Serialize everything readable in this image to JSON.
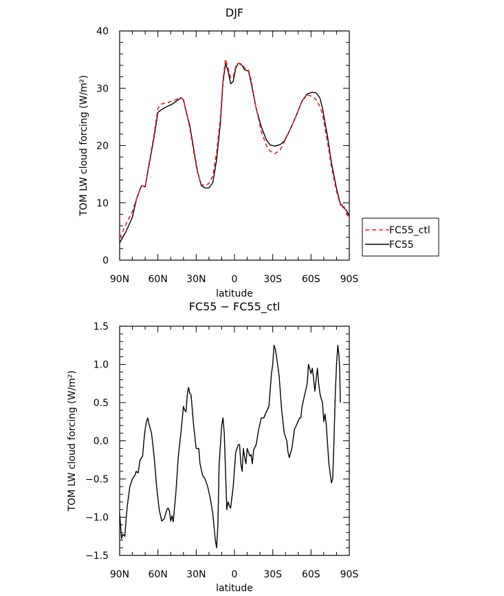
{
  "chart_data": [
    {
      "type": "line",
      "title": "DJF",
      "xlabel": "latitude",
      "ylabel": "TOM LW cloud forcing (W/m²)",
      "xlim": [
        90,
        -90
      ],
      "ylim": [
        0,
        40
      ],
      "x_ticks": [
        90,
        60,
        30,
        0,
        -30,
        -60,
        -90
      ],
      "x_tick_labels": [
        "90N",
        "60N",
        "30N",
        "0",
        "30S",
        "60S",
        "90S"
      ],
      "y_ticks": [
        0,
        10,
        20,
        30,
        40
      ],
      "y_tick_labels": [
        "0",
        "10",
        "20",
        "30",
        "40"
      ],
      "legend": {
        "placement": "right",
        "entries": [
          "FC55_ctl",
          "FC55"
        ]
      },
      "series": [
        {
          "name": "FC55",
          "color": "#000000",
          "dash": "solid",
          "points": [
            [
              90,
              3.0
            ],
            [
              85,
              5.0
            ],
            [
              80,
              7.5
            ],
            [
              77,
              10.5
            ],
            [
              73,
              13.0
            ],
            [
              70,
              12.8
            ],
            [
              67,
              16.5
            ],
            [
              63,
              21.5
            ],
            [
              60,
              25.8
            ],
            [
              57,
              26.3
            ],
            [
              53,
              26.8
            ],
            [
              49,
              27.2
            ],
            [
              46,
              27.7
            ],
            [
              42,
              28.3
            ],
            [
              40,
              28.0
            ],
            [
              38,
              26.0
            ],
            [
              35,
              23.5
            ],
            [
              32,
              19.5
            ],
            [
              29,
              15.5
            ],
            [
              26,
              13.0
            ],
            [
              23,
              12.6
            ],
            [
              20,
              12.6
            ],
            [
              17,
              13.5
            ],
            [
              14,
              17.5
            ],
            [
              11,
              24.0
            ],
            [
              9,
              31.0
            ],
            [
              7,
              34.3
            ],
            [
              5,
              33.0
            ],
            [
              3,
              30.8
            ],
            [
              1,
              31.2
            ],
            [
              -1,
              33.5
            ],
            [
              -3,
              34.4
            ],
            [
              -6,
              34.0
            ],
            [
              -8,
              33.2
            ],
            [
              -11,
              33.0
            ],
            [
              -13,
              31.0
            ],
            [
              -17,
              26.5
            ],
            [
              -21,
              23.3
            ],
            [
              -25,
              21.0
            ],
            [
              -28,
              20.1
            ],
            [
              -32,
              19.9
            ],
            [
              -36,
              20.2
            ],
            [
              -39,
              20.8
            ],
            [
              -43,
              22.5
            ],
            [
              -48,
              25.0
            ],
            [
              -53,
              27.8
            ],
            [
              -57,
              29.0
            ],
            [
              -61,
              29.3
            ],
            [
              -64,
              29.2
            ],
            [
              -67,
              28.3
            ],
            [
              -69,
              26.5
            ],
            [
              -73,
              21.5
            ],
            [
              -76,
              17.0
            ],
            [
              -80,
              12.5
            ],
            [
              -83,
              9.8
            ],
            [
              -85,
              9.3
            ],
            [
              -88,
              8.6
            ],
            [
              -90,
              7.7
            ]
          ]
        },
        {
          "name": "FC55_ctl",
          "color": "#e8202a",
          "dash": "dashed",
          "points": [
            [
              90,
              3.8
            ],
            [
              85,
              6.3
            ],
            [
              80,
              8.5
            ],
            [
              77,
              10.6
            ],
            [
              73,
              12.9
            ],
            [
              70,
              12.9
            ],
            [
              67,
              16.8
            ],
            [
              63,
              22.0
            ],
            [
              60,
              26.5
            ],
            [
              57,
              27.3
            ],
            [
              53,
              27.4
            ],
            [
              49,
              27.8
            ],
            [
              46,
              28.0
            ],
            [
              42,
              28.4
            ],
            [
              40,
              28.0
            ],
            [
              38,
              26.2
            ],
            [
              35,
              23.0
            ],
            [
              32,
              19.0
            ],
            [
              29,
              15.3
            ],
            [
              26,
              13.2
            ],
            [
              23,
              13.0
            ],
            [
              20,
              13.4
            ],
            [
              17,
              14.7
            ],
            [
              14,
              18.8
            ],
            [
              11,
              25.0
            ],
            [
              9,
              31.5
            ],
            [
              7,
              35.1
            ],
            [
              5,
              33.5
            ],
            [
              3,
              31.8
            ],
            [
              1,
              32.0
            ],
            [
              -1,
              33.8
            ],
            [
              -3,
              34.4
            ],
            [
              -6,
              34.2
            ],
            [
              -8,
              33.5
            ],
            [
              -11,
              33.2
            ],
            [
              -13,
              31.5
            ],
            [
              -17,
              26.5
            ],
            [
              -21,
              22.5
            ],
            [
              -25,
              20.0
            ],
            [
              -28,
              19.0
            ],
            [
              -32,
              18.6
            ],
            [
              -36,
              19.3
            ],
            [
              -39,
              20.6
            ],
            [
              -43,
              22.5
            ],
            [
              -48,
              25.0
            ],
            [
              -53,
              27.8
            ],
            [
              -57,
              28.8
            ],
            [
              -61,
              28.6
            ],
            [
              -64,
              28.0
            ],
            [
              -67,
              26.8
            ],
            [
              -69,
              25.5
            ],
            [
              -73,
              20.5
            ],
            [
              -76,
              16.3
            ],
            [
              -80,
              12.0
            ],
            [
              -83,
              9.6
            ],
            [
              -85,
              9.8
            ],
            [
              -88,
              8.2
            ],
            [
              -90,
              7.0
            ]
          ]
        }
      ]
    },
    {
      "type": "line",
      "title": "FC55 − FC55_ctl",
      "xlabel": "latitude",
      "ylabel": "TOM LW cloud forcing (W/m²)",
      "xlim": [
        90,
        -90
      ],
      "ylim": [
        -1.5,
        1.5
      ],
      "x_ticks": [
        90,
        60,
        30,
        0,
        -30,
        -60,
        -90
      ],
      "x_tick_labels": [
        "90N",
        "60N",
        "30N",
        "0",
        "30S",
        "60S",
        "90S"
      ],
      "y_ticks": [
        -1.5,
        -1.0,
        -0.5,
        0.0,
        0.5,
        1.0,
        1.5
      ],
      "y_tick_labels": [
        "−1.5",
        "−1.0",
        "−0.5",
        "0.0",
        "0.5",
        "1.0",
        "1.5"
      ],
      "series": [
        {
          "name": "",
          "color": "#000000",
          "dash": "solid",
          "points": [
            [
              90,
              -0.95
            ],
            [
              88.5,
              -1.28
            ],
            [
              87.5,
              -1.22
            ],
            [
              86,
              -1.25
            ],
            [
              84,
              -0.85
            ],
            [
              82,
              -0.6
            ],
            [
              80,
              -0.5
            ],
            [
              78,
              -0.45
            ],
            [
              77,
              -0.4
            ],
            [
              75.5,
              -0.42
            ],
            [
              74,
              -0.25
            ],
            [
              72,
              -0.2
            ],
            [
              71,
              0.0
            ],
            [
              70,
              0.15
            ],
            [
              69,
              0.25
            ],
            [
              68,
              0.3
            ],
            [
              67,
              0.22
            ],
            [
              65,
              0.1
            ],
            [
              63,
              -0.2
            ],
            [
              61,
              -0.6
            ],
            [
              59,
              -0.9
            ],
            [
              57,
              -1.05
            ],
            [
              55,
              -1.02
            ],
            [
              53,
              -0.9
            ],
            [
              52,
              -0.88
            ],
            [
              51,
              -0.92
            ],
            [
              50,
              -1.05
            ],
            [
              49,
              -0.98
            ],
            [
              48,
              -1.06
            ],
            [
              46,
              -0.7
            ],
            [
              44,
              -0.2
            ],
            [
              42,
              0.1
            ],
            [
              40,
              0.45
            ],
            [
              39,
              0.4
            ],
            [
              38,
              0.38
            ],
            [
              37,
              0.6
            ],
            [
              36,
              0.7
            ],
            [
              35,
              0.62
            ],
            [
              34,
              0.6
            ],
            [
              32,
              0.2
            ],
            [
              30,
              -0.1
            ],
            [
              28,
              -0.1
            ],
            [
              27,
              -0.3
            ],
            [
              25,
              -0.45
            ],
            [
              23,
              -0.5
            ],
            [
              21,
              -0.6
            ],
            [
              19,
              -0.75
            ],
            [
              17,
              -0.95
            ],
            [
              15,
              -1.3
            ],
            [
              14,
              -1.4
            ],
            [
              13,
              -1.1
            ],
            [
              12,
              -0.3
            ],
            [
              10,
              0.2
            ],
            [
              9,
              0.3
            ],
            [
              8,
              0.1
            ],
            [
              7,
              -0.4
            ],
            [
              6,
              -0.9
            ],
            [
              5,
              -0.8
            ],
            [
              4,
              -0.85
            ],
            [
              3,
              -0.88
            ],
            [
              1,
              -0.6
            ],
            [
              -1,
              -0.15
            ],
            [
              -3,
              -0.05
            ],
            [
              -4,
              -0.05
            ],
            [
              -5,
              -0.3
            ],
            [
              -6,
              -0.4
            ],
            [
              -7,
              -0.1
            ],
            [
              -8,
              -0.22
            ],
            [
              -9,
              -0.3
            ],
            [
              -10,
              -0.1
            ],
            [
              -11,
              -0.15
            ],
            [
              -12,
              -0.2
            ],
            [
              -13,
              -0.18
            ],
            [
              -14,
              -0.3
            ],
            [
              -15,
              -0.12
            ],
            [
              -17,
              -0.05
            ],
            [
              -19,
              0.15
            ],
            [
              -21,
              0.3
            ],
            [
              -23,
              0.3
            ],
            [
              -25,
              0.38
            ],
            [
              -27,
              0.45
            ],
            [
              -29,
              0.88
            ],
            [
              -30,
              1.0
            ],
            [
              -31,
              1.25
            ],
            [
              -32,
              1.2
            ],
            [
              -33,
              1.1
            ],
            [
              -35,
              0.85
            ],
            [
              -37,
              0.4
            ],
            [
              -39,
              0.1
            ],
            [
              -41,
              0.0
            ],
            [
              -42,
              -0.15
            ],
            [
              -43,
              -0.22
            ],
            [
              -45,
              -0.1
            ],
            [
              -47,
              0.15
            ],
            [
              -49,
              0.22
            ],
            [
              -51,
              0.3
            ],
            [
              -52,
              0.3
            ],
            [
              -53,
              0.45
            ],
            [
              -55,
              0.6
            ],
            [
              -57,
              0.75
            ],
            [
              -58,
              1.0
            ],
            [
              -60,
              0.88
            ],
            [
              -61,
              0.95
            ],
            [
              -62,
              0.82
            ],
            [
              -63,
              0.65
            ],
            [
              -64,
              0.8
            ],
            [
              -65,
              0.95
            ],
            [
              -66,
              0.75
            ],
            [
              -67,
              0.62
            ],
            [
              -68,
              0.55
            ],
            [
              -69,
              0.5
            ],
            [
              -70,
              0.25
            ],
            [
              -71,
              0.35
            ],
            [
              -72,
              0.2
            ],
            [
              -74,
              -0.3
            ],
            [
              -76,
              -0.55
            ],
            [
              -77,
              -0.5
            ],
            [
              -78,
              0.0
            ],
            [
              -79,
              0.6
            ],
            [
              -80,
              1.0
            ],
            [
              -81,
              1.25
            ],
            [
              -82,
              1.1
            ],
            [
              -82.5,
              0.9
            ],
            [
              -83,
              0.5
            ]
          ]
        }
      ]
    }
  ]
}
